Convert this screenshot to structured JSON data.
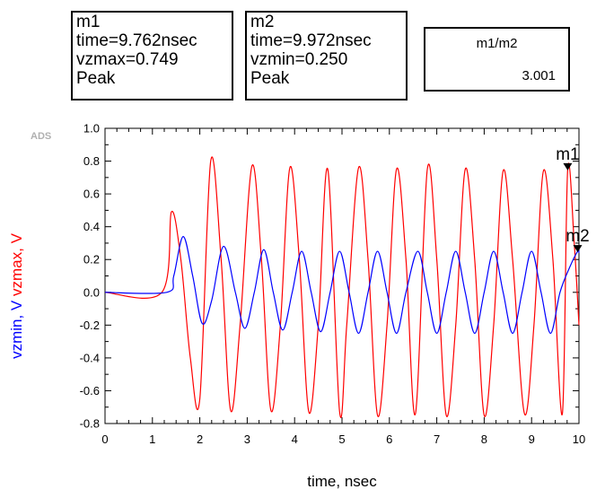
{
  "markers": {
    "m1": {
      "name": "m1",
      "time": "time=9.762nsec",
      "value": "vzmax=0.749",
      "kind": "Peak"
    },
    "m2": {
      "name": "m2",
      "time": "time=9.972nsec",
      "value": "vzmin=0.250",
      "kind": "Peak"
    },
    "ratio": {
      "title": "m1/m2",
      "value": "3.001"
    }
  },
  "watermark": "ADS",
  "colors": {
    "vzmin": "#0000ff",
    "vzmax": "#ff0000",
    "axis": "#000000"
  },
  "chart_data": {
    "type": "line",
    "title": "",
    "xlabel": "time, nsec",
    "ylabel_parts": [
      {
        "text": "vzmin, V",
        "color": "#0000ff"
      },
      {
        "text": "vzmax, V",
        "color": "#ff0000"
      }
    ],
    "xlim": [
      0,
      10
    ],
    "ylim": [
      -0.8,
      1.0
    ],
    "x_ticks": [
      "0",
      "1",
      "2",
      "3",
      "4",
      "5",
      "6",
      "7",
      "8",
      "9",
      "10"
    ],
    "y_ticks": [
      "1.0",
      "0.8",
      "0.6",
      "0.4",
      "0.2",
      "0.0",
      "-0.2",
      "-0.4",
      "-0.6",
      "-0.8"
    ],
    "grid": false,
    "series": [
      {
        "name": "vzmax",
        "color": "#ff0000",
        "x": [
          0,
          1.2,
          1.4,
          1.6,
          1.8,
          2.0,
          2.23,
          2.45,
          2.65,
          2.85,
          3.1,
          3.3,
          3.5,
          3.7,
          3.9,
          4.1,
          4.3,
          4.5,
          4.7,
          4.95,
          5.1,
          5.35,
          5.55,
          5.75,
          5.95,
          6.15,
          6.35,
          6.55,
          6.8,
          7.0,
          7.2,
          7.4,
          7.6,
          7.8,
          8.0,
          8.2,
          8.4,
          8.6,
          8.85,
          9.05,
          9.25,
          9.45,
          9.65,
          9.762,
          9.9,
          10.0
        ],
        "y": [
          0,
          0,
          0.49,
          0.2,
          -0.4,
          -0.65,
          0.8,
          0.2,
          -0.72,
          -0.2,
          0.77,
          0.2,
          -0.72,
          -0.2,
          0.76,
          0.2,
          -0.73,
          -0.2,
          0.75,
          -0.73,
          -0.2,
          0.76,
          0.2,
          -0.75,
          -0.2,
          0.75,
          0.2,
          -0.74,
          0.75,
          0.2,
          -0.75,
          -0.2,
          0.75,
          0.2,
          -0.75,
          -0.2,
          0.74,
          0.2,
          -0.74,
          -0.2,
          0.74,
          0.2,
          -0.74,
          0.749,
          0.3,
          -0.2
        ]
      },
      {
        "name": "vzmin",
        "color": "#0000ff",
        "x": [
          0,
          1.3,
          1.45,
          1.65,
          1.85,
          2.05,
          2.25,
          2.5,
          2.75,
          2.95,
          3.15,
          3.35,
          3.55,
          3.75,
          3.95,
          4.15,
          4.35,
          4.55,
          4.75,
          4.95,
          5.15,
          5.35,
          5.55,
          5.75,
          5.95,
          6.15,
          6.35,
          6.6,
          6.8,
          7.0,
          7.2,
          7.4,
          7.6,
          7.8,
          8.0,
          8.2,
          8.4,
          8.6,
          8.8,
          9.0,
          9.2,
          9.4,
          9.6,
          9.8,
          9.972,
          10.0
        ],
        "y": [
          0,
          0,
          0.1,
          0.34,
          0.1,
          -0.19,
          -0.05,
          0.28,
          0.0,
          -0.22,
          0.0,
          0.26,
          0.0,
          -0.23,
          0.0,
          0.25,
          0.0,
          -0.24,
          0.0,
          0.25,
          0.0,
          -0.25,
          0.0,
          0.25,
          0.0,
          -0.25,
          0.0,
          0.25,
          0.0,
          -0.25,
          0.0,
          0.25,
          0.0,
          -0.25,
          0.0,
          0.25,
          0.0,
          -0.25,
          0.0,
          0.25,
          0.0,
          -0.25,
          0.0,
          0.15,
          0.25,
          0.24
        ]
      }
    ],
    "markers": [
      {
        "label": "m1",
        "series": "vzmax",
        "x": 9.762,
        "y": 0.749
      },
      {
        "label": "m2",
        "series": "vzmin",
        "x": 9.972,
        "y": 0.25
      }
    ]
  }
}
